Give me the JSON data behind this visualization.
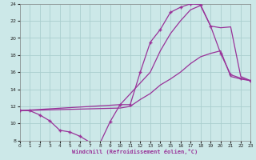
{
  "xlabel": "Windchill (Refroidissement éolien,°C)",
  "xlim": [
    0,
    23
  ],
  "ylim": [
    8,
    24
  ],
  "yticks": [
    8,
    10,
    12,
    14,
    16,
    18,
    20,
    22,
    24
  ],
  "xticks": [
    0,
    1,
    2,
    3,
    4,
    5,
    6,
    7,
    8,
    9,
    10,
    11,
    12,
    13,
    14,
    15,
    16,
    17,
    18,
    19,
    20,
    21,
    22,
    23
  ],
  "bg_color": "#cce8e8",
  "grid_color": "#aacece",
  "line_color": "#993399",
  "lines": [
    {
      "x": [
        0,
        1,
        2,
        3,
        4,
        5,
        6,
        7,
        8,
        9,
        10,
        11,
        12,
        13,
        14,
        15,
        16,
        17,
        18,
        19,
        20,
        21,
        22,
        23
      ],
      "y": [
        11.5,
        11.5,
        11.0,
        10.3,
        9.2,
        9.0,
        8.5,
        7.8,
        7.7,
        10.2,
        12.2,
        12.2,
        16.0,
        19.5,
        21.0,
        23.0,
        23.6,
        24.0,
        23.9,
        21.4,
        18.2,
        15.7,
        15.3,
        15.0
      ],
      "marker": "+"
    },
    {
      "x": [
        0,
        10,
        13,
        14,
        15,
        16,
        17,
        18,
        19,
        20,
        21,
        22,
        23
      ],
      "y": [
        11.5,
        12.2,
        16.0,
        18.5,
        20.5,
        22.0,
        23.3,
        23.8,
        21.4,
        21.2,
        21.3,
        15.5,
        15.0
      ],
      "marker": null
    },
    {
      "x": [
        0,
        10,
        11,
        12,
        13,
        14,
        15,
        16,
        17,
        18,
        19,
        20,
        21,
        22,
        23
      ],
      "y": [
        11.5,
        11.8,
        12.0,
        12.8,
        13.5,
        14.5,
        15.2,
        16.0,
        17.0,
        17.8,
        18.2,
        18.5,
        15.5,
        15.2,
        15.0
      ],
      "marker": null
    }
  ]
}
